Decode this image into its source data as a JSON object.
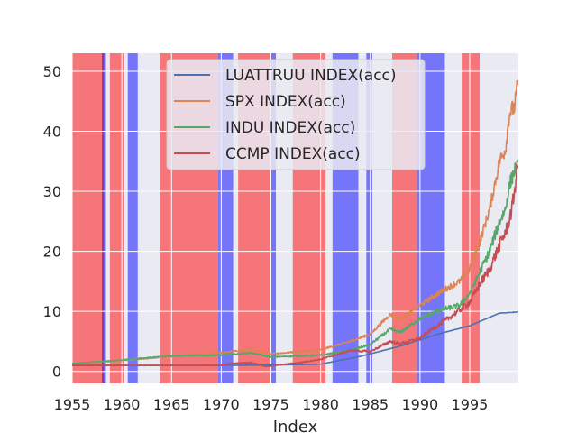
{
  "chart_data": {
    "type": "line",
    "title": "",
    "xlabel": "Index",
    "ylabel": "",
    "xlim": [
      1955,
      1999.9
    ],
    "ylim": [
      -2,
      53
    ],
    "x_ticks": [
      "1955",
      "1960",
      "1965",
      "1970",
      "1975",
      "1980",
      "1985",
      "1990",
      "1995"
    ],
    "y_ticks": [
      "0",
      "10",
      "20",
      "30",
      "40",
      "50"
    ],
    "grid": true,
    "legend_position": "top-center",
    "plot_background": "#EAEAF2",
    "shaded_regions": [
      {
        "start": 1955.0,
        "end": 1958.2,
        "color": "red"
      },
      {
        "start": 1958.0,
        "end": 1958.4,
        "color": "blue"
      },
      {
        "start": 1958.8,
        "end": 1960.2,
        "color": "red"
      },
      {
        "start": 1960.6,
        "end": 1961.6,
        "color": "blue"
      },
      {
        "start": 1963.8,
        "end": 1969.7,
        "color": "red"
      },
      {
        "start": 1969.7,
        "end": 1971.2,
        "color": "blue"
      },
      {
        "start": 1971.7,
        "end": 1974.9,
        "color": "red"
      },
      {
        "start": 1974.9,
        "end": 1975.5,
        "color": "blue"
      },
      {
        "start": 1977.2,
        "end": 1980.5,
        "color": "red"
      },
      {
        "start": 1981.2,
        "end": 1983.8,
        "color": "blue"
      },
      {
        "start": 1984.6,
        "end": 1985.2,
        "color": "blue"
      },
      {
        "start": 1987.2,
        "end": 1989.7,
        "color": "red"
      },
      {
        "start": 1989.7,
        "end": 1992.5,
        "color": "blue"
      },
      {
        "start": 1994.2,
        "end": 1996.0,
        "color": "red"
      }
    ],
    "series": [
      {
        "name": "LUATTRUU INDEX(acc)",
        "color": "#4C72B0",
        "noise": 0.003,
        "x": [
          1955,
          1960,
          1965,
          1970,
          1975,
          1980,
          1984,
          1988,
          1992,
          1995,
          1998,
          1999.9
        ],
        "values": [
          1.0,
          1.0,
          1.0,
          1.0,
          1.05,
          1.2,
          2.5,
          4.2,
          6.3,
          7.6,
          9.7,
          9.9
        ]
      },
      {
        "name": "SPX INDEX(acc)",
        "color": "#DD8452",
        "noise": 0.035,
        "x": [
          1955,
          1960,
          1965,
          1970,
          1973,
          1975,
          1980,
          1983,
          1985,
          1987,
          1988,
          1990,
          1992,
          1994,
          1995,
          1996,
          1997,
          1998,
          1998.6,
          1999,
          1999.5,
          1999.9
        ],
        "values": [
          1.3,
          1.8,
          2.5,
          3.1,
          3.7,
          2.9,
          3.6,
          5.0,
          6.2,
          9.5,
          8.7,
          11.0,
          13.2,
          15.0,
          17.0,
          21.5,
          27.0,
          35.0,
          37.0,
          43.0,
          44.0,
          48.5
        ]
      },
      {
        "name": "INDU INDEX(acc)",
        "color": "#55A868",
        "noise": 0.04,
        "x": [
          1955,
          1960,
          1965,
          1970,
          1973,
          1975,
          1980,
          1983,
          1985,
          1987,
          1988,
          1990,
          1992,
          1994,
          1995,
          1996,
          1997,
          1998,
          1998.6,
          1999,
          1999.5,
          1999.9
        ],
        "values": [
          1.3,
          1.9,
          2.6,
          2.7,
          3.1,
          2.4,
          2.7,
          3.5,
          4.5,
          7.0,
          6.5,
          8.8,
          10.2,
          11.0,
          13.0,
          16.5,
          20.0,
          25.0,
          27.0,
          31.0,
          33.5,
          34.0
        ]
      },
      {
        "name": "CCMP INDEX(acc)",
        "color": "#C44E52",
        "noise": 0.05,
        "x": [
          1955,
          1960,
          1965,
          1970,
          1971,
          1973,
          1974.5,
          1976,
          1978,
          1980,
          1983,
          1985,
          1987,
          1988,
          1990,
          1991,
          1993,
          1995,
          1996,
          1997,
          1998,
          1998.8,
          1999.3,
          1999.9
        ],
        "values": [
          1.0,
          1.0,
          1.0,
          1.0,
          1.3,
          1.5,
          0.8,
          1.1,
          1.5,
          2.0,
          3.5,
          3.3,
          5.0,
          4.6,
          5.5,
          6.8,
          9.0,
          11.5,
          14.5,
          17.0,
          21.0,
          24.0,
          27.5,
          35.0
        ]
      }
    ]
  }
}
